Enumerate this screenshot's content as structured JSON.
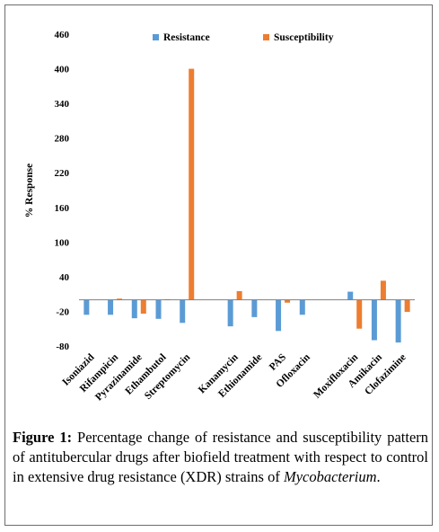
{
  "chart_data": {
    "type": "bar",
    "ylabel": "% Response",
    "xlabel": "",
    "ylim": [
      -80,
      460
    ],
    "yticks": [
      -80,
      -20,
      40,
      100,
      160,
      220,
      280,
      340,
      400,
      460
    ],
    "categories": [
      "Isoniazid",
      "Rifampicin",
      "Pyrazinamide",
      "Ethambutol",
      "Streptomycin",
      "Kanamycin",
      "Ethionamide",
      "PAS",
      "Ofloxacin",
      "Moxifloxacin",
      "Amikacin",
      "Clofazimine"
    ],
    "gap_after": [
      4,
      8
    ],
    "grid": false,
    "legend_position": "top",
    "series": [
      {
        "name": "Resistance",
        "color": "#5b9bd5",
        "values": [
          -26,
          -26,
          -32,
          -33,
          -40,
          -46,
          -30,
          -54,
          -26,
          14,
          -70,
          -74
        ]
      },
      {
        "name": "Susceptibility",
        "color": "#ed7d31",
        "values": [
          null,
          2,
          -24,
          1,
          400,
          15,
          null,
          -5,
          null,
          -50,
          33,
          -21
        ]
      }
    ]
  },
  "caption": {
    "label": "Figure 1:",
    "text": " Percentage change of resistance and susceptibility pattern of antitubercular drugs after biofield treatment with respect to control in extensive drug resistance (XDR) strains of ",
    "species": "Mycobacterium",
    "end": "."
  }
}
